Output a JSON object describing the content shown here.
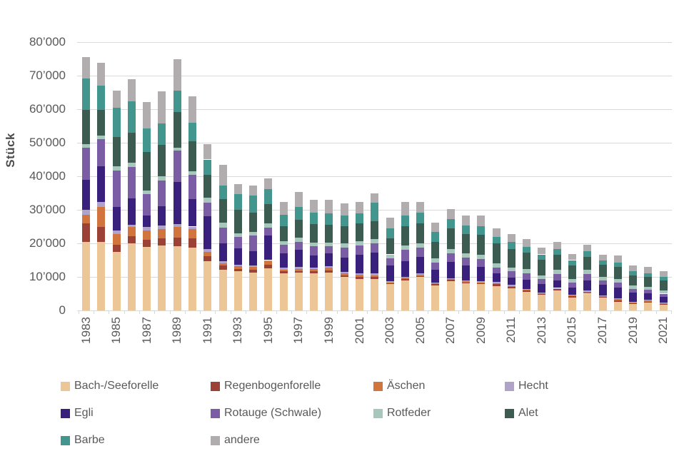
{
  "chart_data": {
    "type": "bar",
    "stacked": true,
    "title": "",
    "xlabel": "",
    "ylabel": "Stück",
    "ylim": [
      0,
      80000
    ],
    "ytick_step": 10000,
    "ytick_labels": [
      "0",
      "10’000",
      "20’000",
      "30’000",
      "40’000",
      "50’000",
      "60’000",
      "70’000",
      "80’000"
    ],
    "grid": "horizontal",
    "gridline_color": "#d9d9d9",
    "axis_text_color": "#595959",
    "legend_position": "bottom",
    "categories": [
      "1983",
      "1984",
      "1985",
      "1986",
      "1987",
      "1988",
      "1989",
      "1990",
      "1991",
      "1992",
      "1993",
      "1994",
      "1995",
      "1996",
      "1997",
      "1998",
      "1999",
      "2000",
      "2001",
      "2002",
      "2003",
      "2004",
      "2005",
      "2006",
      "2007",
      "2008",
      "2009",
      "2010",
      "2011",
      "2012",
      "2013",
      "2014",
      "2015",
      "2016",
      "2017",
      "2018",
      "2019",
      "2020",
      "2021"
    ],
    "xtick_labeled_years": [
      "1983",
      "1985",
      "1987",
      "1989",
      "1991",
      "1993",
      "1995",
      "1997",
      "1999",
      "2001",
      "2003",
      "2005",
      "2007",
      "2009",
      "2011",
      "2013",
      "2015",
      "2017",
      "2019",
      "2021"
    ],
    "series": [
      {
        "name": "Bach-/Seeforelle",
        "color": "#ecc697",
        "values": [
          20400,
          20500,
          17500,
          19900,
          18900,
          19400,
          19100,
          18700,
          14700,
          12100,
          11600,
          11300,
          12600,
          11000,
          11200,
          11000,
          11300,
          10000,
          9400,
          9400,
          7800,
          9000,
          9900,
          7500,
          8700,
          8100,
          7800,
          7300,
          6700,
          5500,
          4600,
          5900,
          3900,
          5000,
          3800,
          2600,
          1900,
          2300,
          1800
        ]
      },
      {
        "name": "Regenbogenforelle",
        "color": "#9c4136",
        "values": [
          5500,
          4300,
          2100,
          2300,
          2200,
          2100,
          2700,
          2800,
          1400,
          1200,
          700,
          800,
          1000,
          600,
          600,
          700,
          600,
          500,
          500,
          500,
          300,
          400,
          400,
          300,
          400,
          300,
          300,
          500,
          400,
          400,
          300,
          400,
          300,
          300,
          200,
          300,
          200,
          300,
          200
        ]
      },
      {
        "name": "Äschen",
        "color": "#d2743e",
        "values": [
          2700,
          6100,
          3100,
          2600,
          2700,
          2800,
          3000,
          2700,
          1300,
          700,
          800,
          800,
          1000,
          600,
          600,
          600,
          800,
          500,
          800,
          600,
          300,
          400,
          400,
          300,
          300,
          300,
          300,
          300,
          200,
          200,
          200,
          200,
          200,
          200,
          200,
          400,
          300,
          300,
          100
        ]
      },
      {
        "name": "Hecht",
        "color": "#b0a3c9",
        "values": [
          1500,
          1400,
          1100,
          700,
          1000,
          1000,
          900,
          800,
          800,
          700,
          500,
          600,
          400,
          600,
          500,
          500,
          400,
          400,
          400,
          500,
          300,
          300,
          300,
          200,
          200,
          300,
          300,
          400,
          300,
          300,
          200,
          200,
          300,
          400,
          300,
          300,
          200,
          300,
          200
        ]
      },
      {
        "name": "Egli",
        "color": "#38207c",
        "values": [
          8800,
          10600,
          7100,
          7800,
          3600,
          5700,
          12600,
          8100,
          9900,
          5300,
          5000,
          4100,
          7300,
          4200,
          5200,
          3600,
          3900,
          4300,
          5400,
          6300,
          4800,
          4600,
          5000,
          3800,
          4900,
          4500,
          4300,
          2600,
          2100,
          2800,
          2500,
          2300,
          2100,
          3100,
          3100,
          3300,
          2700,
          2000,
          1700
        ]
      },
      {
        "name": "Rotauge (Schwale)",
        "color": "#7b5da6",
        "values": [
          9600,
          8200,
          10900,
          9500,
          6300,
          7800,
          9400,
          7300,
          4000,
          4700,
          3300,
          4700,
          2400,
          2500,
          2300,
          2700,
          2100,
          3100,
          2900,
          2800,
          2100,
          3400,
          2800,
          2100,
          2500,
          2300,
          2300,
          1700,
          1900,
          1900,
          1600,
          1900,
          1600,
          1900,
          1400,
          1400,
          1100,
          1000,
          1000
        ]
      },
      {
        "name": "Rotfeder",
        "color": "#a7c7bd",
        "values": [
          1100,
          1100,
          1100,
          1200,
          1100,
          1100,
          900,
          1100,
          1600,
          1500,
          1000,
          1100,
          1200,
          1200,
          1200,
          1100,
          1100,
          1200,
          1200,
          1200,
          1100,
          1300,
          1300,
          1300,
          1200,
          1200,
          1200,
          1200,
          1200,
          1200,
          1000,
          1200,
          1000,
          1200,
          1100,
          1100,
          1000,
          900,
          900
        ]
      },
      {
        "name": "Alet",
        "color": "#3c5c52",
        "values": [
          10100,
          7500,
          8700,
          9000,
          11500,
          9500,
          10600,
          8900,
          6700,
          6900,
          7200,
          5800,
          5900,
          4500,
          5500,
          5500,
          5400,
          5200,
          5300,
          5300,
          4800,
          5800,
          5800,
          5000,
          6300,
          5700,
          6000,
          5900,
          5600,
          4900,
          4700,
          4600,
          4000,
          3900,
          3600,
          3600,
          3000,
          2800,
          3100
        ]
      },
      {
        "name": "Barbe",
        "color": "#42968d",
        "values": [
          9500,
          7400,
          8900,
          9400,
          7000,
          6300,
          6400,
          5600,
          4600,
          4100,
          4500,
          5000,
          4400,
          3300,
          3800,
          3400,
          3400,
          3200,
          3000,
          5600,
          3000,
          3200,
          3200,
          2900,
          2700,
          2600,
          2700,
          2100,
          2000,
          1700,
          1600,
          1500,
          1600,
          1700,
          1200,
          1200,
          1300,
          1200,
          1100
        ]
      },
      {
        "name": "andere",
        "color": "#b1adaf",
        "values": [
          6300,
          6700,
          5100,
          6600,
          7900,
          9600,
          9400,
          7800,
          4600,
          6100,
          3100,
          3000,
          3200,
          3800,
          4400,
          3900,
          3900,
          3600,
          3500,
          2700,
          3200,
          4000,
          3300,
          2800,
          3100,
          3100,
          3200,
          2500,
          2300,
          2400,
          2100,
          2200,
          1900,
          1900,
          1800,
          2100,
          1600,
          1900,
          1600
        ]
      }
    ],
    "legend": {
      "position": "bottom",
      "columns": 4,
      "items": [
        "Bach-/Seeforelle",
        "Regenbogenforelle",
        "Äschen",
        "Hecht",
        "Egli",
        "Rotauge (Schwale)",
        "Rotfeder",
        "Alet",
        "Barbe",
        "andere"
      ]
    }
  }
}
